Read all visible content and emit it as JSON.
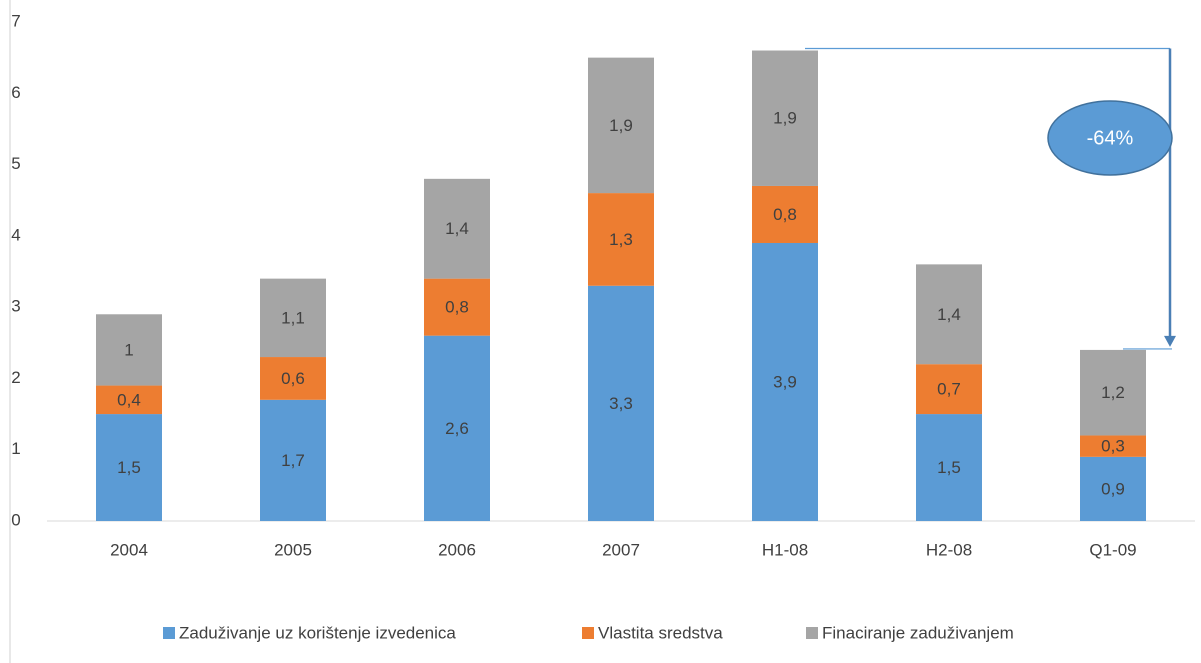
{
  "chart_data": {
    "type": "stacked_bar",
    "categories": [
      "2004",
      "2005",
      "2006",
      "2007",
      "H1-08",
      "H2-08",
      "Q1-09"
    ],
    "series": [
      {
        "name": "Zaduživanje uz korištenje izvedenica",
        "color": "#5b9bd5",
        "values": [
          1.5,
          1.7,
          2.6,
          3.3,
          3.9,
          1.5,
          0.9
        ],
        "value_labels": [
          "1,5",
          "1,7",
          "2,6",
          "3,3",
          "3,9",
          "1,5",
          "0,9"
        ]
      },
      {
        "name": "Vlastita sredstva",
        "color": "#ed7d31",
        "values": [
          0.4,
          0.6,
          0.8,
          1.3,
          0.8,
          0.7,
          0.3
        ],
        "value_labels": [
          "0,4",
          "0,6",
          "0,8",
          "1,3",
          "0,8",
          "0,7",
          "0,3"
        ]
      },
      {
        "name": "Finaciranje zaduživanjem",
        "color": "#a5a5a5",
        "values": [
          1,
          1.1,
          1.4,
          1.9,
          1.9,
          1.4,
          1.2
        ],
        "value_labels": [
          "1",
          "1,1",
          "1,4",
          "1,9",
          "1,9",
          "1,4",
          "1,2"
        ]
      }
    ],
    "ylim": [
      0,
      7
    ],
    "yticks": [
      0,
      1,
      2,
      3,
      4,
      5,
      6,
      7
    ],
    "grid": false,
    "legend": "bottom",
    "annotation": "-64%"
  }
}
